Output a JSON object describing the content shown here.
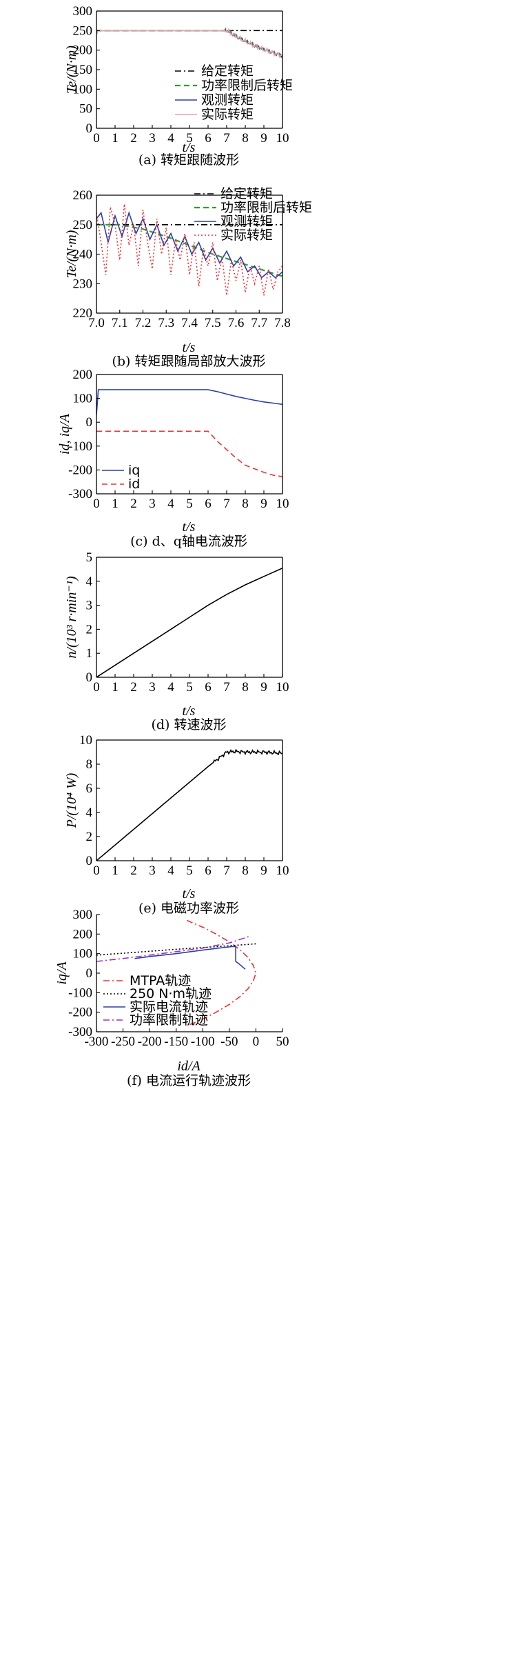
{
  "chart_data": [
    {
      "type": "line",
      "caption": "(a) 转矩跟随波形",
      "xlabel": "t/s",
      "ylabel": "Te/(N·m)",
      "xlim": [
        0,
        10
      ],
      "ylim": [
        0,
        300
      ],
      "xticks": [
        0,
        1,
        2,
        3,
        4,
        5,
        6,
        7,
        8,
        9,
        10
      ],
      "yticks": [
        0,
        50,
        100,
        150,
        200,
        250,
        300
      ],
      "legend_position": "center-right",
      "series": [
        {
          "name": "给定转矩",
          "color": "#000000",
          "dash": "dashdot",
          "x": [
            0,
            10
          ],
          "y": [
            250,
            250
          ]
        },
        {
          "name": "功率限制后转矩",
          "color": "#2e9e2e",
          "dash": "dashed",
          "x": [
            0,
            0.1,
            7.0,
            7.5,
            8.0,
            8.5,
            9.0,
            9.5,
            10
          ],
          "y": [
            245,
            250,
            250,
            236,
            223,
            212,
            202,
            193,
            186
          ]
        },
        {
          "name": "观测转矩",
          "color": "#2b3fa6",
          "dash": "solid",
          "x": [
            0,
            0.1,
            7.0,
            7.5,
            8.0,
            8.5,
            9.0,
            9.5,
            10
          ],
          "y": [
            240,
            250,
            250,
            236,
            223,
            212,
            202,
            193,
            186
          ]
        },
        {
          "name": "实际转矩",
          "color": "#e9a0a8",
          "dash": "solid",
          "x": [
            0,
            0.1,
            7.0,
            7.5,
            8.0,
            8.5,
            9.0,
            9.5,
            10
          ],
          "y": [
            240,
            250,
            250,
            236,
            222,
            212,
            201,
            193,
            186
          ]
        }
      ]
    },
    {
      "type": "line",
      "caption": "(b) 转矩跟随局部放大波形",
      "xlabel": "t/s",
      "ylabel": "Te/(N·m)",
      "xlim": [
        7.0,
        7.8
      ],
      "ylim": [
        220,
        260
      ],
      "xticks": [
        7.0,
        7.1,
        7.2,
        7.3,
        7.4,
        7.5,
        7.6,
        7.7,
        7.8
      ],
      "yticks": [
        220,
        230,
        240,
        250,
        260
      ],
      "legend_position": "top-right",
      "series": [
        {
          "name": "给定转矩",
          "color": "#000000",
          "dash": "dashdot",
          "x": [
            7.0,
            7.8
          ],
          "y": [
            250,
            250
          ]
        },
        {
          "name": "功率限制后转矩",
          "color": "#2e9e2e",
          "dash": "dashed",
          "x": [
            7.0,
            7.1,
            7.2,
            7.3,
            7.4,
            7.5,
            7.6,
            7.7,
            7.8
          ],
          "y": [
            250,
            250,
            248.5,
            246,
            243,
            240,
            237.5,
            235,
            232.5
          ]
        },
        {
          "name": "观测转矩",
          "color": "#2b3fa6",
          "dash": "solid",
          "x": [
            7.0,
            7.02,
            7.05,
            7.08,
            7.11,
            7.14,
            7.17,
            7.2,
            7.23,
            7.26,
            7.29,
            7.32,
            7.35,
            7.38,
            7.41,
            7.44,
            7.47,
            7.5,
            7.53,
            7.56,
            7.59,
            7.62,
            7.65,
            7.68,
            7.71,
            7.74,
            7.77,
            7.8
          ],
          "y": [
            252,
            254,
            244,
            253,
            246,
            254,
            247,
            252,
            245,
            250,
            243,
            247,
            241,
            246,
            240,
            244,
            238,
            242,
            237,
            241,
            236,
            239,
            234,
            236,
            232,
            234,
            232,
            234
          ]
        },
        {
          "name": "实际转矩",
          "color": "#e8323a",
          "dash": "dotted",
          "x": [
            7.0,
            7.02,
            7.04,
            7.06,
            7.08,
            7.1,
            7.12,
            7.14,
            7.16,
            7.18,
            7.2,
            7.22,
            7.24,
            7.26,
            7.28,
            7.3,
            7.32,
            7.34,
            7.36,
            7.38,
            7.4,
            7.42,
            7.44,
            7.46,
            7.48,
            7.5,
            7.52,
            7.54,
            7.56,
            7.58,
            7.6,
            7.62,
            7.64,
            7.66,
            7.68,
            7.7,
            7.72,
            7.74,
            7.76,
            7.78,
            7.8
          ],
          "y": [
            254,
            244,
            233,
            256,
            250,
            238,
            257,
            243,
            250,
            236,
            255,
            244,
            235,
            252,
            240,
            249,
            233,
            245,
            238,
            247,
            233,
            244,
            229,
            242,
            236,
            244,
            231,
            239,
            226,
            238,
            231,
            238,
            227,
            236,
            230,
            236,
            226,
            235,
            228,
            234,
            236
          ]
        }
      ]
    },
    {
      "type": "line",
      "caption": "(c) d、q轴电流波形",
      "xlabel": "t/s",
      "ylabel": "id, iq/A",
      "xlim": [
        0,
        10
      ],
      "ylim": [
        -300,
        200
      ],
      "xticks": [
        0,
        1,
        2,
        3,
        4,
        5,
        6,
        7,
        8,
        9,
        10
      ],
      "yticks": [
        -300,
        -200,
        -100,
        0,
        100,
        200
      ],
      "legend_position": "bottom-left",
      "series": [
        {
          "name": "iq",
          "color": "#2b3fa6",
          "dash": "solid",
          "x": [
            0,
            0.1,
            6.0,
            6.5,
            7.0,
            7.5,
            8.0,
            8.5,
            9.0,
            9.5,
            10
          ],
          "y": [
            30,
            136,
            136,
            128,
            118,
            108,
            100,
            92,
            85,
            80,
            75
          ]
        },
        {
          "name": "id",
          "color": "#e8323a",
          "dash": "dashed",
          "x": [
            0,
            6.0,
            6.5,
            7.0,
            7.5,
            8.0,
            8.5,
            9.0,
            9.5,
            10
          ],
          "y": [
            -38,
            -38,
            -80,
            -115,
            -150,
            -180,
            -195,
            -210,
            -222,
            -228
          ]
        }
      ]
    },
    {
      "type": "line",
      "caption": "(d) 转速波形",
      "xlabel": "t/s",
      "ylabel": "n/(10³ r·min⁻¹)",
      "xlim": [
        0,
        10
      ],
      "ylim": [
        0,
        5
      ],
      "xticks": [
        0,
        1,
        2,
        3,
        4,
        5,
        6,
        7,
        8,
        9,
        10
      ],
      "yticks": [
        0,
        1,
        2,
        3,
        4,
        5
      ],
      "series": [
        {
          "name": "",
          "color": "#000000",
          "dash": "solid",
          "x": [
            0,
            1,
            2,
            3,
            4,
            5,
            6,
            7,
            8,
            9,
            10
          ],
          "y": [
            0,
            0.5,
            1.0,
            1.5,
            2.0,
            2.5,
            3.0,
            3.45,
            3.85,
            4.2,
            4.55
          ]
        }
      ]
    },
    {
      "type": "line",
      "caption": "(e) 电磁功率波形",
      "xlabel": "t/s",
      "ylabel": "P/(10⁴ W)",
      "xlim": [
        0,
        10
      ],
      "ylim": [
        0,
        10
      ],
      "xticks": [
        0,
        1,
        2,
        3,
        4,
        5,
        6,
        7,
        8,
        9,
        10
      ],
      "yticks": [
        0,
        2,
        4,
        6,
        8,
        10
      ],
      "series": [
        {
          "name": "",
          "color": "#000000",
          "dash": "solid",
          "x": [
            0,
            1,
            2,
            3,
            4,
            5,
            6,
            6.5,
            7.0,
            7.5,
            8,
            9,
            10
          ],
          "y": [
            0,
            1.3,
            2.6,
            3.9,
            5.2,
            6.5,
            7.8,
            8.4,
            9.0,
            9.05,
            9.0,
            9.0,
            8.9
          ]
        }
      ]
    },
    {
      "type": "line",
      "caption": "(f) 电流运行轨迹波形",
      "xlabel": "id/A",
      "ylabel": "iq/A",
      "xlim": [
        -300,
        50
      ],
      "ylim": [
        -300,
        300
      ],
      "xticks": [
        -300,
        -250,
        -200,
        -150,
        -100,
        -50,
        0,
        50
      ],
      "yticks": [
        -300,
        -200,
        -100,
        0,
        100,
        200,
        300
      ],
      "legend_position": "bottom-center",
      "series": [
        {
          "name": "MTPA轨迹",
          "color": "#e8323a",
          "dash": "dashdot",
          "x": [
            -130,
            -100,
            -75,
            -50,
            -30,
            -15,
            -5,
            0,
            -5,
            -15,
            -30,
            -50,
            -75,
            -100,
            -130
          ],
          "y": [
            270,
            235,
            200,
            160,
            120,
            80,
            40,
            0,
            -40,
            -80,
            -120,
            -160,
            -200,
            -235,
            -270
          ]
        },
        {
          "name": "250 N·m轨迹",
          "color": "#000000",
          "dash": "dotted",
          "x": [
            -300,
            -250,
            -200,
            -150,
            -100,
            -50,
            0
          ],
          "y": [
            92,
            102,
            112,
            122,
            131,
            140,
            150
          ]
        },
        {
          "name": "实际电流轨迹",
          "color": "#2b3fa6",
          "dash": "solid",
          "x": [
            -228,
            -200,
            -150,
            -100,
            -70,
            -45,
            -38,
            -38,
            -33,
            -20
          ],
          "y": [
            75,
            85,
            100,
            118,
            128,
            136,
            136,
            60,
            50,
            20
          ]
        },
        {
          "name": "功率限制轨迹",
          "color": "#9b30c0",
          "dash": "dashdot",
          "x": [
            -300,
            -250,
            -200,
            -150,
            -100,
            -50,
            -10
          ],
          "y": [
            60,
            75,
            92,
            110,
            128,
            155,
            190
          ]
        }
      ]
    }
  ]
}
